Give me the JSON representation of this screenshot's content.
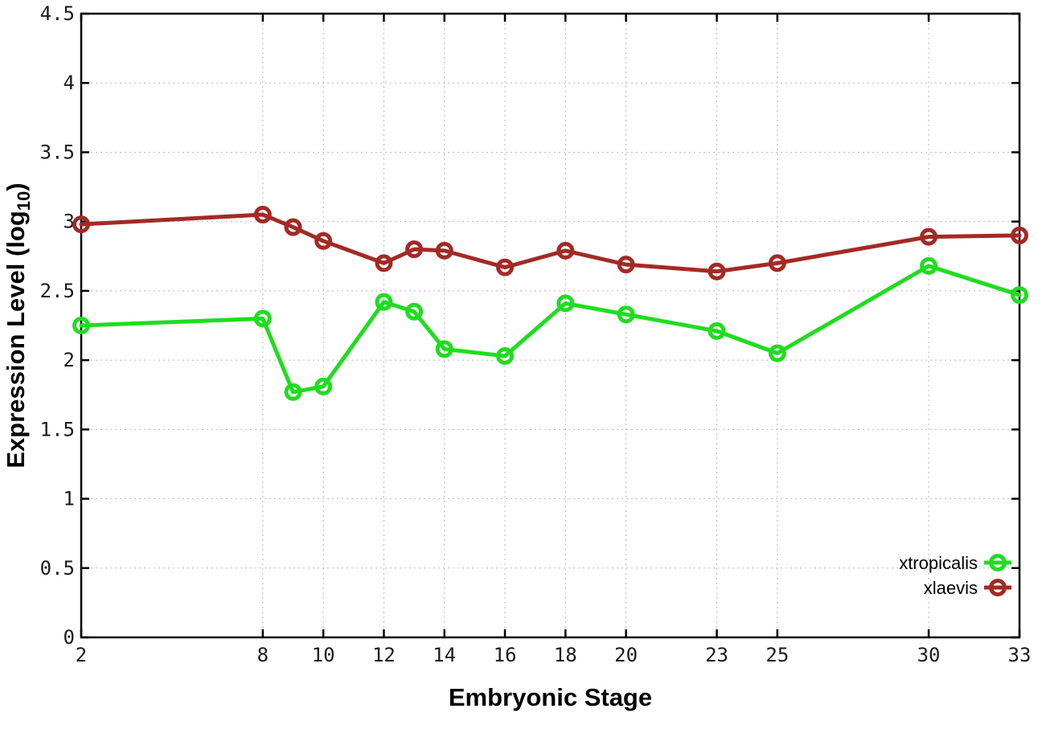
{
  "figure": {
    "background": "#ffffff",
    "axis_color": "#000000",
    "grid_color": "#b9b9b9",
    "tick_label_color": "#1a1a1a"
  },
  "chart_data": {
    "type": "line",
    "title": "",
    "xlabel": "Embryonic Stage",
    "ylabel": {
      "prefix": "Expression Level (log",
      "subscript": "10",
      "suffix": ")"
    },
    "xlim": [
      2,
      33
    ],
    "ylim": [
      0,
      4.5
    ],
    "xticks": [
      2,
      8,
      10,
      12,
      14,
      16,
      18,
      20,
      23,
      25,
      30,
      33
    ],
    "yticks": [
      0,
      0.5,
      1,
      1.5,
      2,
      2.5,
      3,
      3.5,
      4,
      4.5
    ],
    "grid": true,
    "legend_position": "inside-bottom-right",
    "x": [
      2,
      8,
      9,
      10,
      12,
      13,
      14,
      16,
      18,
      20,
      23,
      25,
      30,
      33
    ],
    "series": [
      {
        "name": "xtropicalis",
        "color": "#1fdd1f",
        "marker": "open-circle",
        "values": [
          2.25,
          2.3,
          1.77,
          1.81,
          2.42,
          2.35,
          2.08,
          2.03,
          2.41,
          2.33,
          2.21,
          2.05,
          2.68,
          2.47
        ]
      },
      {
        "name": "xlaevis",
        "color": "#a32a25",
        "marker": "open-circle",
        "values": [
          2.98,
          3.05,
          2.96,
          2.86,
          2.7,
          2.8,
          2.79,
          2.67,
          2.79,
          2.69,
          2.64,
          2.7,
          2.89,
          2.9
        ]
      }
    ]
  }
}
